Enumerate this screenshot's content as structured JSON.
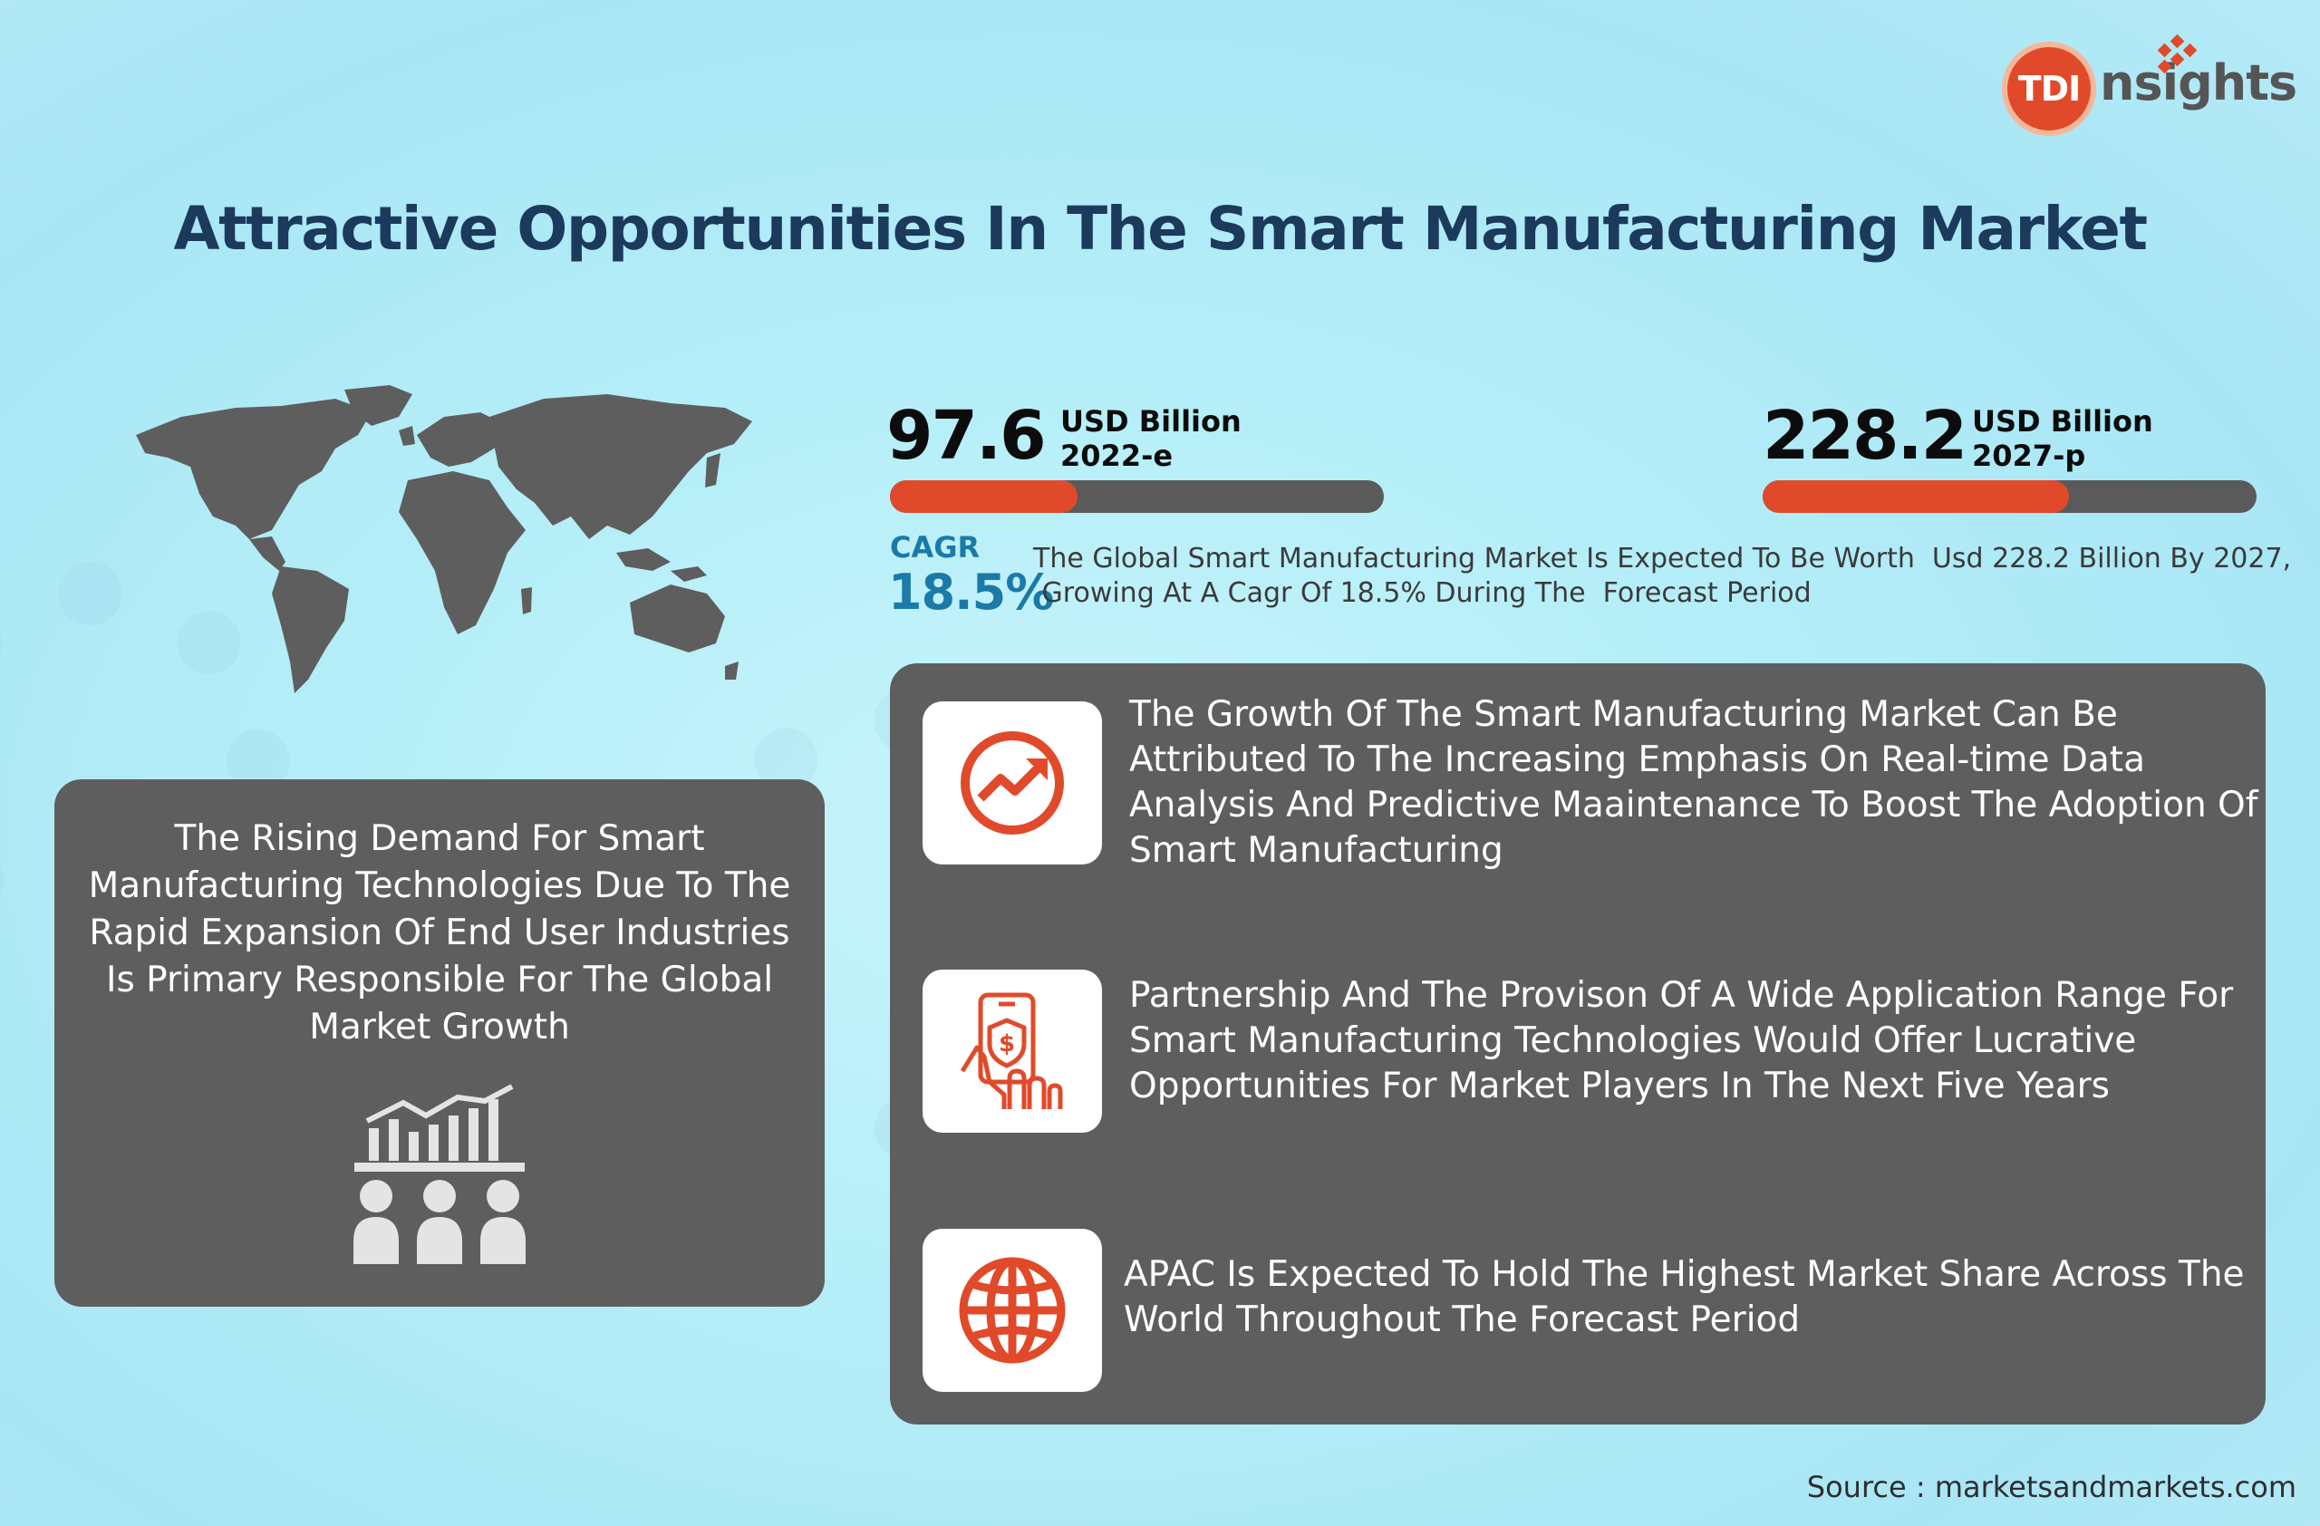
{
  "brand": {
    "logo_circle_text": "TDI",
    "logo_word": "nsights"
  },
  "title": "Attractive Opportunities In The Smart Manufacturing Market",
  "stats": [
    {
      "value": "97.6",
      "unit": "USD Billion",
      "period": "2022-e",
      "bar_fraction": 0.38
    },
    {
      "value": "228.2",
      "unit": "USD Billion",
      "period": "2027-p",
      "bar_fraction": 0.62
    }
  ],
  "cagr": {
    "label": "CAGR",
    "value": "18.5%",
    "text_line1": "The Global Smart Manufacturing Market Is Expected To Be Worth  Usd 228.2 Billion By 2027,",
    "text_line2": " Growing At A Cagr Of 18.5% During The  Forecast Period"
  },
  "left_card": {
    "text": "The Rising Demand For Smart Manufacturing Technologies Due To The Rapid Expansion Of End User Industries Is Primary Responsible For The Global Market Growth",
    "icon": "people-growth-chart-icon"
  },
  "insights": [
    {
      "icon": "trend-up-circle-icon",
      "text": "The Growth Of The Smart Manufacturing Market Can Be Attributed To The Increasing Emphasis On Real-time Data Analysis And Predictive Maaintenance To Boost The Adoption Of Smart Manufacturing"
    },
    {
      "icon": "mobile-payment-icon",
      "text": "Partnership And The Provison Of A Wide Application Range For Smart Manufacturing Technologies Would Offer Lucrative Opportunities For Market Players In The Next Five Years"
    },
    {
      "icon": "globe-icon",
      "text": "APAC Is Expected To Hold The Highest Market Share Across The World Throughout The Forecast Period"
    }
  ],
  "source": "Source : marketsandmarkets.com",
  "colors": {
    "accent": "#e04a2a",
    "title": "#1b3a5c",
    "panel": "#5e5e5e",
    "cagr": "#1a7aa8"
  }
}
